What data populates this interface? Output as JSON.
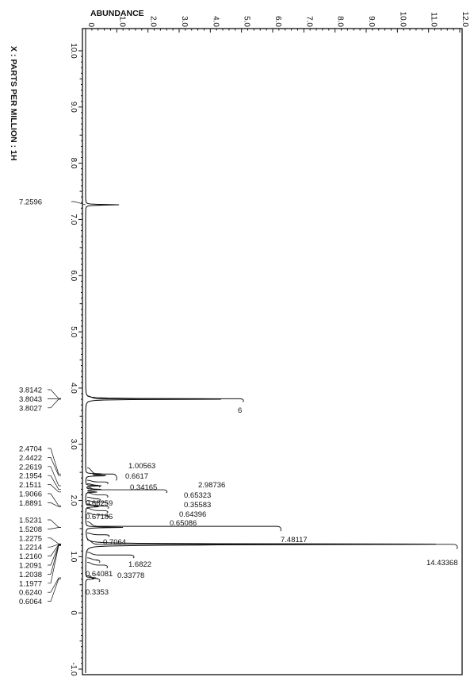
{
  "chart_data": {
    "type": "line",
    "title": "",
    "abundance_axis": {
      "label": "ABUNDANCE",
      "range": [
        0,
        12
      ],
      "ticks": [
        {
          "v": 0,
          "label": "0"
        },
        {
          "v": 1,
          "label": "1.0"
        },
        {
          "v": 2,
          "label": "2.0"
        },
        {
          "v": 3,
          "label": "3.0"
        },
        {
          "v": 4,
          "label": "4.0"
        },
        {
          "v": 5,
          "label": "5.0"
        },
        {
          "v": 6,
          "label": "6.0"
        },
        {
          "v": 7,
          "label": "7.0"
        },
        {
          "v": 8,
          "label": "8.0"
        },
        {
          "v": 9,
          "label": "9.0"
        },
        {
          "v": 10,
          "label": "10.0"
        },
        {
          "v": 11,
          "label": "11.0"
        },
        {
          "v": 12,
          "label": "12.0"
        }
      ]
    },
    "ppm_axis": {
      "label": "X : PARTS PER MILLION : 1H",
      "range": [
        10.0,
        -1.0
      ],
      "ticks": [
        {
          "v": 10,
          "label": "10.0"
        },
        {
          "v": 9,
          "label": "9.0"
        },
        {
          "v": 8,
          "label": "8.0"
        },
        {
          "v": 7,
          "label": "7.0"
        },
        {
          "v": 6,
          "label": "6.0"
        },
        {
          "v": 5,
          "label": "5.0"
        },
        {
          "v": 4,
          "label": "4.0"
        },
        {
          "v": 3,
          "label": "3.0"
        },
        {
          "v": 2,
          "label": "2.0"
        },
        {
          "v": 1,
          "label": "1.0"
        },
        {
          "v": 0,
          "label": "0"
        },
        {
          "v": -1,
          "label": "-1.0"
        }
      ]
    },
    "peaks": [
      {
        "ppm": 7.2596,
        "label": "7.2596",
        "abundance": 1.1
      },
      {
        "ppm": 3.8142,
        "label": "3.8142",
        "abundance": 0.5
      },
      {
        "ppm": 3.8043,
        "label": "3.8043",
        "abundance": 4.8
      },
      {
        "ppm": 3.8027,
        "label": "3.8027",
        "abundance": 0.6
      },
      {
        "ppm": 2.4704,
        "label": "2.4704",
        "abundance": 0.6
      },
      {
        "ppm": 2.4422,
        "label": "2.4422",
        "abundance": 0.8
      },
      {
        "ppm": 2.2619,
        "label": "2.2619",
        "abundance": 0.5
      },
      {
        "ppm": 2.1954,
        "label": "2.1954",
        "abundance": 0.6
      },
      {
        "ppm": 2.1511,
        "label": "2.1511",
        "abundance": 0.4
      },
      {
        "ppm": 1.9066,
        "label": "1.9066",
        "abundance": 0.4
      },
      {
        "ppm": 1.8891,
        "label": "1.8891",
        "abundance": 0.4
      },
      {
        "ppm": 1.5231,
        "label": "1.5231",
        "abundance": 0.7
      },
      {
        "ppm": 1.5208,
        "label": "1.5208",
        "abundance": 0.6
      },
      {
        "ppm": 1.2275,
        "label": "1.2275",
        "abundance": 1.0
      },
      {
        "ppm": 1.2214,
        "label": "1.2214",
        "abundance": 11.8
      },
      {
        "ppm": 1.216,
        "label": "1.2160",
        "abundance": 1.1
      },
      {
        "ppm": 1.2091,
        "label": "1.2091",
        "abundance": 0.7
      },
      {
        "ppm": 1.2038,
        "label": "1.2038",
        "abundance": 0.6
      },
      {
        "ppm": 1.1977,
        "label": "1.1977",
        "abundance": 0.4
      },
      {
        "ppm": 0.624,
        "label": "0.6240",
        "abundance": 0.3
      },
      {
        "ppm": 0.6064,
        "label": "0.6064",
        "abundance": 0.3
      }
    ],
    "integrals": [
      {
        "ppm_from": 3.86,
        "ppm_to": 3.76,
        "label": "6"
      },
      {
        "ppm_from": 2.58,
        "ppm_to": 2.36,
        "label": "1.00563"
      },
      {
        "ppm_from": 2.36,
        "ppm_to": 2.3,
        "label": "0.6617"
      },
      {
        "ppm_from": 2.3,
        "ppm_to": 2.24,
        "label": "0.34165"
      },
      {
        "ppm_from": 2.24,
        "ppm_to": 2.14,
        "label": "2.98736"
      },
      {
        "ppm_from": 2.14,
        "ppm_to": 2.06,
        "label": "0.65323"
      },
      {
        "ppm_from": 2.06,
        "ppm_to": 2.0,
        "label": "0.35583"
      },
      {
        "ppm_from": 2.0,
        "ppm_to": 1.94,
        "label": "0.64396"
      },
      {
        "ppm_from": 1.94,
        "ppm_to": 1.86,
        "label": "0.68259"
      },
      {
        "ppm_from": 1.86,
        "ppm_to": 1.78,
        "label": "0.65086"
      },
      {
        "ppm_from": 1.78,
        "ppm_to": 1.7,
        "label": "0.67186"
      },
      {
        "ppm_from": 1.62,
        "ppm_to": 1.46,
        "label": "7.48117"
      },
      {
        "ppm_from": 1.42,
        "ppm_to": 1.36,
        "label": "0.7064"
      },
      {
        "ppm_from": 1.3,
        "ppm_to": 1.14,
        "label": "14.43368"
      },
      {
        "ppm_from": 1.08,
        "ppm_to": 0.98,
        "label": "1.6822"
      },
      {
        "ppm_from": 0.98,
        "ppm_to": 0.9,
        "label": "0.33778"
      },
      {
        "ppm_from": 0.9,
        "ppm_to": 0.8,
        "label": "0.64081"
      },
      {
        "ppm_from": 0.66,
        "ppm_to": 0.56,
        "label": "0.3353"
      }
    ]
  }
}
